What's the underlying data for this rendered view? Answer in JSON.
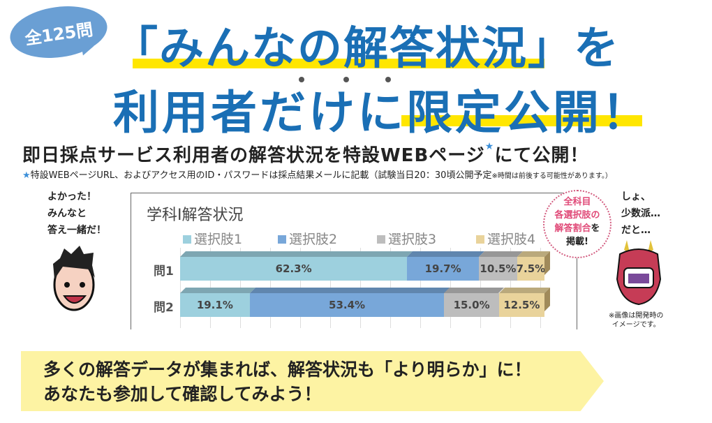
{
  "badge": "全125問",
  "headline": {
    "line1": "「みんなの解答状況」を",
    "line2": "利用者だけに限定公開！"
  },
  "subheadline": {
    "text": "即日採点サービス利用者の解答状況を特設WEBページ",
    "star": "★",
    "tail": "にて公開！"
  },
  "note": {
    "star": "★",
    "text": "特設WEBページURL、およびアクセス用のID・パスワードは採点結果メールに記載（試験当日20：30頃公開予定",
    "small": "※時間は前後する可能性があります。）"
  },
  "left_speech": "よかった！\nみんなと\n答え一緒だ！",
  "right_speech": "しょ、\n少数派…\nだと…",
  "callout": {
    "l1": "全科目",
    "l2": "各選択肢の",
    "l3a": "解答割合",
    "l3b": "を",
    "l4": "掲載!"
  },
  "image_note": "※画像は開発時の\nイメージです。",
  "banner": "多くの解答データが集まれば、解答状況も「より明らか」に！\nあなたも参加して確認してみよう！",
  "chart_data": {
    "type": "bar",
    "orientation": "horizontal",
    "stacked": true,
    "percent": true,
    "title": "学科Ⅰ解答状況",
    "categories": [
      "問1",
      "問2"
    ],
    "legend_position": "top",
    "grid": true,
    "series": [
      {
        "name": "選択肢1",
        "values": [
          62.3,
          19.1
        ],
        "color": "#9dd0de"
      },
      {
        "name": "選択肢2",
        "values": [
          19.7,
          53.4
        ],
        "color": "#78a7d9"
      },
      {
        "name": "選択肢3",
        "values": [
          10.5,
          15.0
        ],
        "color": "#bdbdbd"
      },
      {
        "name": "選択肢4",
        "values": [
          7.5,
          12.5
        ],
        "color": "#e9d39b"
      }
    ]
  }
}
